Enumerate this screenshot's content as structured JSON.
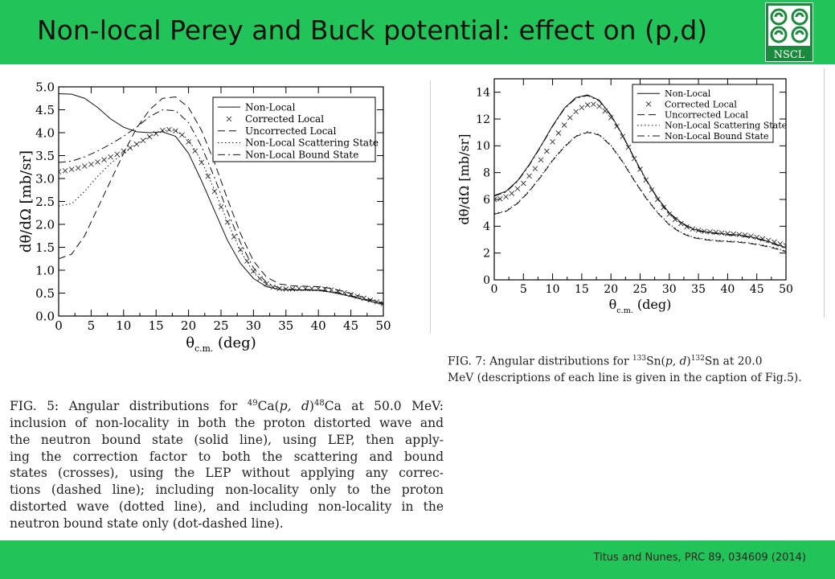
{
  "slide": {
    "title": "Non-local Perey and Buck potential: effect on (p,d)",
    "citation": "Titus and Nunes, PRC 89, 034609 (2014)",
    "logo_text": "NSCL",
    "colors": {
      "band": "#22c45a",
      "logo_bg": "#1a8a3c",
      "text": "#111111"
    }
  },
  "legend_labels": [
    "Non-Local",
    "Corrected Local",
    "Uncorrected Local",
    "Non-Local Scattering State",
    "Non-Local Bound State"
  ],
  "chart_data": [
    {
      "type": "line",
      "title": "",
      "xlabel": "θ c.m. (deg)",
      "ylabel": "dθ/dΩ [mb/sr]",
      "xlim": [
        0,
        50
      ],
      "ylim": [
        0,
        5
      ],
      "xticks": [
        "0",
        "5",
        "10",
        "15",
        "20",
        "25",
        "30",
        "35",
        "40",
        "45",
        "50"
      ],
      "yticks": [
        "0.0",
        "0.5",
        "1.0",
        "1.5",
        "2.0",
        "2.5",
        "3.0",
        "3.5",
        "4.0",
        "4.5",
        "5.0"
      ],
      "legend_position": "top-right",
      "grid": false,
      "series": [
        {
          "name": "Non-Local",
          "style": "solid",
          "x": [
            0,
            2,
            4,
            6,
            8,
            10,
            12,
            14,
            16,
            18,
            20,
            22,
            24,
            26,
            28,
            30,
            32,
            34,
            36,
            38,
            40,
            42,
            44,
            46,
            48,
            50
          ],
          "y": [
            4.85,
            4.84,
            4.75,
            4.55,
            4.3,
            4.12,
            4.02,
            4.0,
            4.02,
            3.92,
            3.55,
            2.95,
            2.3,
            1.65,
            1.15,
            0.82,
            0.64,
            0.58,
            0.57,
            0.57,
            0.56,
            0.52,
            0.46,
            0.39,
            0.32,
            0.25
          ]
        },
        {
          "name": "Corrected Local",
          "style": "crosses",
          "x": [
            0,
            1,
            2,
            3,
            4,
            5,
            6,
            7,
            8,
            9,
            10,
            11,
            12,
            13,
            14,
            15,
            16,
            17,
            18,
            19,
            20,
            21,
            22,
            23,
            24,
            25,
            26,
            27,
            28,
            29,
            30,
            31,
            32,
            33,
            34,
            35,
            36,
            37,
            38,
            39,
            40,
            41,
            42,
            43,
            44,
            45,
            46,
            47,
            48,
            49,
            50
          ],
          "y": [
            3.15,
            3.17,
            3.2,
            3.23,
            3.27,
            3.31,
            3.36,
            3.41,
            3.47,
            3.53,
            3.6,
            3.67,
            3.75,
            3.83,
            3.91,
            3.98,
            4.05,
            4.07,
            4.04,
            3.95,
            3.8,
            3.6,
            3.35,
            3.05,
            2.72,
            2.38,
            2.05,
            1.73,
            1.45,
            1.2,
            0.98,
            0.82,
            0.7,
            0.63,
            0.6,
            0.59,
            0.59,
            0.6,
            0.6,
            0.6,
            0.6,
            0.59,
            0.57,
            0.54,
            0.51,
            0.47,
            0.43,
            0.39,
            0.35,
            0.31,
            0.27
          ]
        },
        {
          "name": "Uncorrected Local",
          "style": "dashed",
          "x": [
            0,
            2,
            4,
            6,
            8,
            10,
            12,
            14,
            16,
            18,
            20,
            22,
            24,
            26,
            28,
            30,
            32,
            34,
            36,
            38,
            40,
            42,
            44,
            46,
            48,
            50
          ],
          "y": [
            1.25,
            1.35,
            1.75,
            2.35,
            2.95,
            3.55,
            4.1,
            4.5,
            4.75,
            4.78,
            4.55,
            4.05,
            3.35,
            2.55,
            1.8,
            1.2,
            0.85,
            0.7,
            0.66,
            0.65,
            0.64,
            0.6,
            0.53,
            0.45,
            0.36,
            0.28
          ]
        },
        {
          "name": "Non-Local Scattering State",
          "style": "dotted",
          "x": [
            0,
            2,
            4,
            6,
            8,
            10,
            12,
            14,
            16,
            18,
            20,
            22,
            24,
            26,
            28,
            30,
            32,
            34,
            36,
            38,
            40,
            42,
            44,
            46,
            48,
            50
          ],
          "y": [
            2.4,
            2.45,
            2.72,
            3.05,
            3.33,
            3.55,
            3.75,
            3.92,
            4.05,
            4.05,
            3.85,
            3.38,
            2.75,
            2.05,
            1.42,
            0.95,
            0.68,
            0.58,
            0.56,
            0.56,
            0.55,
            0.52,
            0.46,
            0.39,
            0.32,
            0.25
          ]
        },
        {
          "name": "Non-Local Bound State",
          "style": "dashdot",
          "x": [
            0,
            2,
            4,
            6,
            8,
            10,
            12,
            14,
            16,
            18,
            20,
            22,
            24,
            26,
            28,
            30,
            32,
            34,
            36,
            38,
            40,
            42,
            44,
            46,
            48,
            50
          ],
          "y": [
            3.35,
            3.38,
            3.47,
            3.6,
            3.75,
            3.92,
            4.12,
            4.35,
            4.5,
            4.48,
            4.22,
            3.7,
            3.02,
            2.28,
            1.6,
            1.05,
            0.73,
            0.61,
            0.58,
            0.58,
            0.57,
            0.54,
            0.48,
            0.41,
            0.34,
            0.27
          ]
        }
      ]
    },
    {
      "type": "line",
      "title": "",
      "xlabel": "θ c.m. (deg)",
      "ylabel": "dθ/dΩ [mb/sr]",
      "xlim": [
        0,
        50
      ],
      "ylim": [
        0,
        15
      ],
      "xticks": [
        "0",
        "5",
        "10",
        "15",
        "20",
        "25",
        "30",
        "35",
        "40",
        "45",
        "50"
      ],
      "yticks": [
        "0",
        "2",
        "4",
        "6",
        "8",
        "10",
        "12",
        "14"
      ],
      "legend_position": "top-right",
      "grid": false,
      "series": [
        {
          "name": "Non-Local",
          "style": "solid",
          "x": [
            0,
            2,
            4,
            6,
            8,
            10,
            12,
            14,
            16,
            18,
            20,
            22,
            24,
            26,
            28,
            30,
            32,
            34,
            36,
            38,
            40,
            42,
            44,
            46,
            48,
            50
          ],
          "y": [
            6.3,
            6.6,
            7.4,
            8.6,
            10.0,
            11.5,
            12.8,
            13.6,
            13.8,
            13.4,
            12.3,
            10.8,
            9.1,
            7.5,
            6.1,
            5.0,
            4.3,
            3.8,
            3.6,
            3.5,
            3.4,
            3.35,
            3.2,
            3.0,
            2.7,
            2.4
          ]
        },
        {
          "name": "Corrected Local",
          "style": "crosses",
          "x": [
            0,
            1,
            2,
            3,
            4,
            5,
            6,
            7,
            8,
            9,
            10,
            11,
            12,
            13,
            14,
            15,
            16,
            17,
            18,
            19,
            20,
            21,
            22,
            23,
            24,
            25,
            26,
            27,
            28,
            29,
            30,
            31,
            32,
            33,
            34,
            35,
            36,
            37,
            38,
            39,
            40,
            41,
            42,
            43,
            44,
            45,
            46,
            47,
            48,
            49,
            50
          ],
          "y": [
            6.0,
            6.05,
            6.2,
            6.45,
            6.8,
            7.2,
            7.75,
            8.3,
            8.95,
            9.6,
            10.3,
            10.95,
            11.55,
            12.1,
            12.55,
            12.85,
            13.05,
            13.1,
            12.95,
            12.6,
            12.1,
            11.45,
            10.7,
            9.9,
            9.05,
            8.25,
            7.45,
            6.7,
            6.0,
            5.4,
            4.9,
            4.5,
            4.2,
            3.95,
            3.8,
            3.7,
            3.62,
            3.58,
            3.55,
            3.5,
            3.45,
            3.42,
            3.38,
            3.33,
            3.26,
            3.17,
            3.06,
            2.95,
            2.82,
            2.68,
            2.55
          ]
        },
        {
          "name": "Uncorrected Local",
          "style": "dashed",
          "x": [
            0,
            2,
            4,
            6,
            8,
            10,
            12,
            14,
            16,
            18,
            20,
            22,
            24,
            26,
            28,
            30,
            32,
            34,
            36,
            38,
            40,
            42,
            44,
            46,
            48,
            50
          ],
          "y": [
            4.9,
            5.1,
            5.7,
            6.6,
            7.7,
            8.9,
            9.9,
            10.7,
            11.0,
            10.8,
            10.0,
            8.8,
            7.4,
            6.1,
            5.0,
            4.1,
            3.5,
            3.15,
            3.0,
            2.9,
            2.85,
            2.8,
            2.7,
            2.55,
            2.35,
            2.1
          ]
        },
        {
          "name": "Non-Local Scattering State",
          "style": "dotted",
          "x": [
            0,
            2,
            4,
            6,
            8,
            10,
            12,
            14,
            16,
            18,
            20,
            22,
            24,
            26,
            28,
            30,
            32,
            34,
            36,
            38,
            40,
            42,
            44,
            46,
            48,
            50
          ],
          "y": [
            4.95,
            5.15,
            5.75,
            6.65,
            7.75,
            8.95,
            9.95,
            10.75,
            11.05,
            10.85,
            10.05,
            8.85,
            7.45,
            6.15,
            5.05,
            4.15,
            3.55,
            3.2,
            3.05,
            2.95,
            2.9,
            2.85,
            2.75,
            2.6,
            2.4,
            2.15
          ]
        },
        {
          "name": "Non-Local Bound State",
          "style": "dashdot",
          "x": [
            0,
            2,
            4,
            6,
            8,
            10,
            12,
            14,
            16,
            18,
            20,
            22,
            24,
            26,
            28,
            30,
            32,
            34,
            36,
            38,
            40,
            42,
            44,
            46,
            48,
            50
          ],
          "y": [
            6.25,
            6.55,
            7.35,
            8.55,
            9.95,
            11.45,
            12.75,
            13.55,
            13.75,
            13.35,
            12.25,
            10.75,
            9.05,
            7.45,
            6.05,
            4.95,
            4.25,
            3.75,
            3.55,
            3.45,
            3.35,
            3.3,
            3.15,
            2.95,
            2.65,
            2.35
          ]
        }
      ]
    }
  ],
  "captions": {
    "fig5": {
      "prefix": "FIG. 5: Angular distributions for ",
      "reaction_sup1": "49",
      "reaction_mid": "Ca(",
      "reaction_p": "p, d",
      "reaction_mid2": ")",
      "reaction_sup2": "48",
      "reaction_end": "Ca at 50.0 MeV:",
      "lines": [
        "inclusion of non-locality in both the proton distorted wave and",
        "the neutron bound state (solid line), using LEP, then apply-",
        "ing the correction factor to both the scattering and bound",
        "states (crosses), using the LEP without applying any correc-",
        "tions (dashed line); including non-locality only to the proton",
        "distorted wave (dotted line), and including non-locality in the",
        "neutron bound state only (dot-dashed line)."
      ]
    },
    "fig7": {
      "prefix": "FIG. 7:  Angular distributions for ",
      "reaction_sup1": "133",
      "reaction_mid": "Sn(",
      "reaction_p": "p, d",
      "reaction_mid2": ")",
      "reaction_sup2": "132",
      "reaction_end": "Sn at 20.0",
      "line2": "MeV (descriptions of each line is given in the caption of Fig.5)."
    }
  }
}
